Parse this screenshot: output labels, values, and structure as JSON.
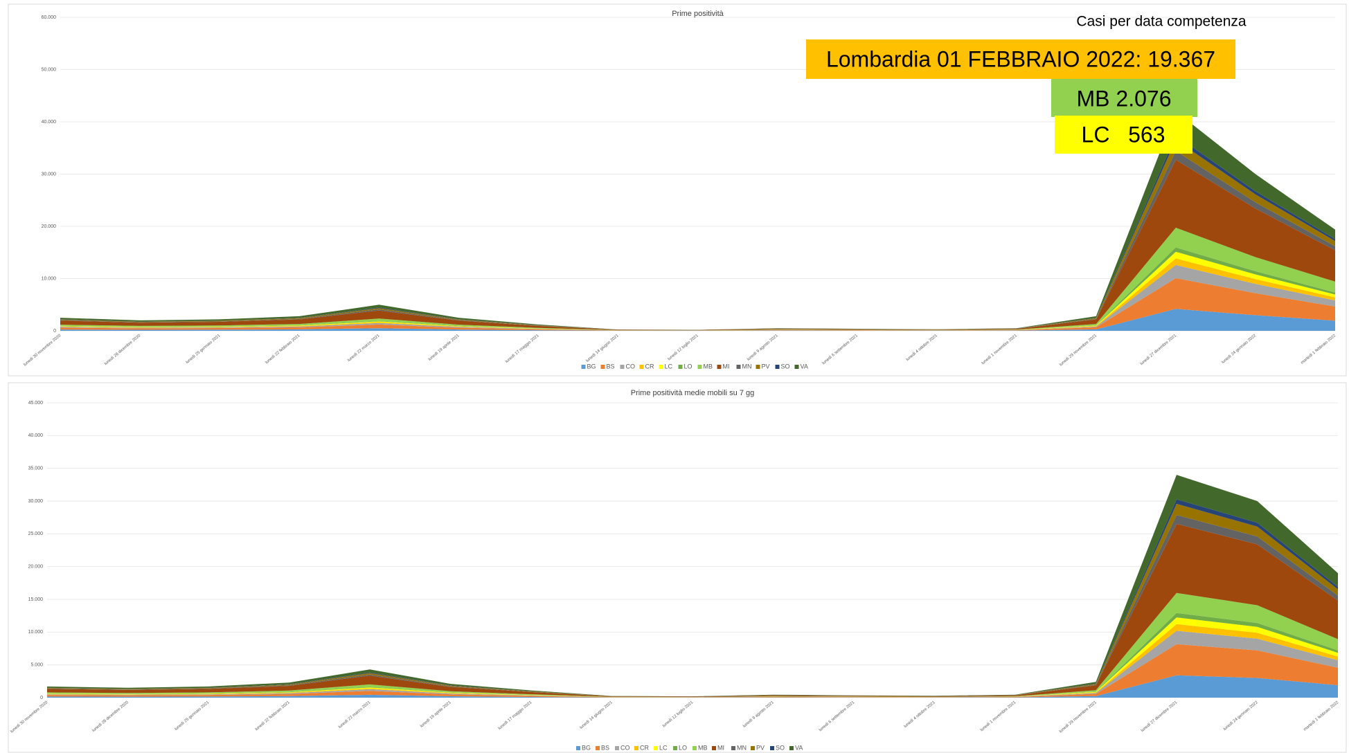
{
  "chart_data": [
    {
      "type": "area",
      "title": "Prime positività",
      "categories": [
        "lunedì 30 novembre 2020",
        "lunedì 28 dicembre 2020",
        "lunedì 25 gennaio 2021",
        "lunedì 22 febbraio 2021",
        "lunedì 22 marzo 2021",
        "lunedì 19 aprile 2021",
        "lunedì 17 maggio 2021",
        "lunedì 14 giugno 2021",
        "lunedì 12 luglio 2021",
        "lunedì 9 agosto 2021",
        "lunedì 6 settembre 2021",
        "lunedì 4 ottobre 2021",
        "lunedì 1 novembre 2021",
        "lunedì 29 novembre 2021",
        "lunedì 27 dicembre 2021",
        "lunedì 24 gennaio 2022",
        "martedì 1 febbraio 2022"
      ],
      "ylim": [
        0,
        60000
      ],
      "yticks": [
        0,
        {
          "value": 10000,
          "label": "10.000"
        },
        {
          "value": 20000,
          "label": "20.000"
        },
        {
          "value": 30000,
          "label": "30.000"
        },
        {
          "value": 40000,
          "label": "40.000"
        },
        {
          "value": 50000,
          "label": "50.000"
        },
        {
          "value": 60000,
          "label": "60.000"
        }
      ],
      "grid": true,
      "legend": "bottom",
      "annotations": [
        "Casi per data competenza",
        "Lombardia 01 FEBBRAIO 2022: 19.367",
        "MB 2.076",
        "LC   563"
      ],
      "series": [
        {
          "name": "BG",
          "color": "#5b9bd5",
          "values": [
            250,
            200,
            220,
            280,
            500,
            250,
            120,
            25,
            20,
            50,
            40,
            30,
            50,
            280,
            4200,
            3000,
            1937
          ]
        },
        {
          "name": "BS",
          "color": "#ed7d31",
          "values": [
            350,
            280,
            308,
            392,
            700,
            350,
            168,
            35,
            28,
            70,
            56,
            42,
            70,
            392,
            5880,
            4200,
            2711
          ]
        },
        {
          "name": "CO",
          "color": "#a5a5a5",
          "values": [
            150,
            120,
            132,
            168,
            300,
            150,
            72,
            15,
            12,
            30,
            24,
            18,
            30,
            168,
            2520,
            1800,
            1162
          ]
        },
        {
          "name": "CR",
          "color": "#ffc000",
          "values": [
            75,
            60,
            66,
            84,
            150,
            75,
            36,
            8,
            6,
            15,
            12,
            9,
            15,
            84,
            1260,
            900,
            581
          ]
        },
        {
          "name": "LC",
          "color": "#ffff00",
          "values": [
            75,
            60,
            66,
            84,
            150,
            75,
            36,
            8,
            6,
            15,
            12,
            9,
            15,
            84,
            1260,
            900,
            563
          ]
        },
        {
          "name": "LO",
          "color": "#70ad47",
          "values": [
            50,
            40,
            44,
            56,
            100,
            50,
            24,
            5,
            4,
            10,
            8,
            6,
            10,
            56,
            840,
            600,
            387
          ]
        },
        {
          "name": "MB",
          "color": "#92d050",
          "values": [
            225,
            180,
            198,
            252,
            450,
            225,
            108,
            23,
            18,
            45,
            36,
            27,
            45,
            252,
            3780,
            2700,
            2076
          ]
        },
        {
          "name": "MI",
          "color": "#9e480e",
          "values": [
            775,
            620,
            682,
            868,
            1550,
            775,
            372,
            78,
            62,
            155,
            124,
            93,
            155,
            868,
            13020,
            9300,
            6004
          ]
        },
        {
          "name": "MN",
          "color": "#636363",
          "values": [
            100,
            80,
            88,
            112,
            200,
            100,
            48,
            10,
            8,
            20,
            16,
            12,
            20,
            112,
            1680,
            1200,
            775
          ]
        },
        {
          "name": "PV",
          "color": "#997300",
          "values": [
            125,
            100,
            110,
            140,
            250,
            125,
            60,
            13,
            10,
            25,
            20,
            15,
            25,
            140,
            2100,
            1500,
            968
          ]
        },
        {
          "name": "SO",
          "color": "#264478",
          "values": [
            50,
            40,
            44,
            56,
            100,
            50,
            24,
            5,
            4,
            10,
            8,
            6,
            10,
            56,
            840,
            600,
            387
          ]
        },
        {
          "name": "VA",
          "color": "#43682b",
          "values": [
            275,
            220,
            242,
            308,
            550,
            275,
            132,
            28,
            22,
            55,
            44,
            33,
            55,
            308,
            4620,
            3300,
            1816
          ]
        }
      ]
    },
    {
      "type": "area",
      "title": "Prime positività medie mobili su 7 gg",
      "categories": [
        "lunedì 30 novembre 2020",
        "lunedì 28 dicembre 2020",
        "lunedì 25 gennaio 2021",
        "lunedì 22 febbraio 2021",
        "lunedì 22 marzo 2021",
        "lunedì 19 aprile 2021",
        "lunedì 17 maggio 2021",
        "lunedì 14 giugno 2021",
        "lunedì 12 luglio 2021",
        "lunedì 9 agosto 2021",
        "lunedì 6 settembre 2021",
        "lunedì 4 ottobre 2021",
        "lunedì 1 novembre 2021",
        "lunedì 29 novembre 2021",
        "lunedì 27 dicembre 2021",
        "lunedì 24 gennaio 2022",
        "martedì 1 febbraio 2022"
      ],
      "ylim": [
        0,
        45000
      ],
      "yticks": [
        0,
        {
          "value": 5000,
          "label": "5.000"
        },
        {
          "value": 10000,
          "label": "10.000"
        },
        {
          "value": 15000,
          "label": "15.000"
        },
        {
          "value": 20000,
          "label": "20.000"
        },
        {
          "value": 25000,
          "label": "25.000"
        },
        {
          "value": 30000,
          "label": "30.000"
        },
        {
          "value": 35000,
          "label": "35.000"
        },
        {
          "value": 40000,
          "label": "40.000"
        },
        {
          "value": 45000,
          "label": "45.000"
        }
      ],
      "grid": true,
      "legend": "bottom",
      "series": [
        {
          "name": "BG",
          "color": "#5b9bd5",
          "values": [
            170,
            150,
            170,
            230,
            430,
            210,
            110,
            25,
            20,
            45,
            35,
            28,
            45,
            240,
            3400,
            3000,
            1900
          ]
        },
        {
          "name": "BS",
          "color": "#ed7d31",
          "values": [
            238,
            210,
            238,
            322,
            602,
            294,
            154,
            35,
            28,
            63,
            49,
            39,
            63,
            336,
            4760,
            4200,
            2660
          ]
        },
        {
          "name": "CO",
          "color": "#a5a5a5",
          "values": [
            102,
            90,
            102,
            138,
            258,
            126,
            66,
            15,
            12,
            27,
            21,
            17,
            27,
            144,
            2040,
            1800,
            1140
          ]
        },
        {
          "name": "CR",
          "color": "#ffc000",
          "values": [
            51,
            45,
            51,
            69,
            129,
            63,
            33,
            8,
            6,
            14,
            11,
            8,
            14,
            72,
            1020,
            900,
            570
          ]
        },
        {
          "name": "LC",
          "color": "#ffff00",
          "values": [
            51,
            45,
            51,
            69,
            129,
            63,
            33,
            8,
            6,
            14,
            11,
            8,
            14,
            72,
            1020,
            900,
            570
          ]
        },
        {
          "name": "LO",
          "color": "#70ad47",
          "values": [
            34,
            30,
            34,
            46,
            86,
            42,
            22,
            5,
            4,
            9,
            7,
            6,
            9,
            48,
            680,
            600,
            380
          ]
        },
        {
          "name": "MB",
          "color": "#92d050",
          "values": [
            153,
            135,
            153,
            207,
            387,
            189,
            99,
            23,
            18,
            41,
            32,
            25,
            41,
            216,
            3060,
            2700,
            1710
          ]
        },
        {
          "name": "MI",
          "color": "#9e480e",
          "values": [
            527,
            465,
            527,
            713,
            1333,
            651,
            341,
            78,
            62,
            140,
            109,
            87,
            140,
            744,
            10540,
            9300,
            5890
          ]
        },
        {
          "name": "MN",
          "color": "#636363",
          "values": [
            68,
            60,
            68,
            92,
            172,
            84,
            44,
            10,
            8,
            18,
            14,
            11,
            18,
            96,
            1360,
            1200,
            760
          ]
        },
        {
          "name": "PV",
          "color": "#997300",
          "values": [
            85,
            75,
            85,
            115,
            215,
            105,
            55,
            13,
            10,
            23,
            18,
            14,
            23,
            120,
            1700,
            1500,
            950
          ]
        },
        {
          "name": "SO",
          "color": "#264478",
          "values": [
            34,
            30,
            34,
            46,
            86,
            42,
            22,
            5,
            4,
            9,
            7,
            6,
            9,
            48,
            680,
            600,
            380
          ]
        },
        {
          "name": "VA",
          "color": "#43682b",
          "values": [
            187,
            165,
            187,
            253,
            473,
            231,
            121,
            28,
            22,
            50,
            39,
            31,
            50,
            264,
            3740,
            3300,
            2090
          ]
        }
      ]
    }
  ]
}
